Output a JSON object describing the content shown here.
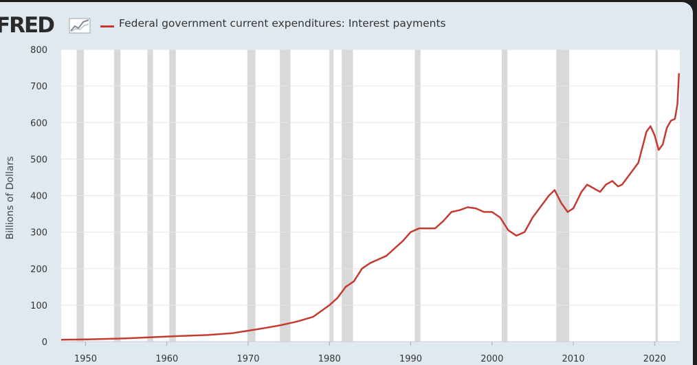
{
  "header": {
    "logo_text": "FRED",
    "legend_label": "Federal government current expenditures: Interest payments"
  },
  "colors": {
    "series": "#c43a30",
    "recession": "#d9d9d9",
    "plot_bg": "#ffffff",
    "card_bg": "#e1e9f0"
  },
  "chart_data": {
    "type": "line",
    "title": "",
    "xlabel": "",
    "ylabel": "Billions of Dollars",
    "xlim": [
      1947,
      2023.1
    ],
    "ylim": [
      0,
      800
    ],
    "y_ticks": [
      0,
      100,
      200,
      300,
      400,
      500,
      600,
      700,
      800
    ],
    "x_ticks": [
      1950,
      1960,
      1970,
      1980,
      1990,
      2000,
      2010,
      2020
    ],
    "grid": true,
    "legend_position": "top",
    "recessions": [
      [
        1948.9,
        1949.8
      ],
      [
        1953.5,
        1954.3
      ],
      [
        1957.6,
        1958.3
      ],
      [
        1960.3,
        1961.1
      ],
      [
        1969.9,
        1970.9
      ],
      [
        1973.9,
        1975.2
      ],
      [
        1980.0,
        1980.5
      ],
      [
        1981.5,
        1982.9
      ],
      [
        1990.5,
        1991.2
      ],
      [
        2001.2,
        2001.9
      ],
      [
        2007.9,
        2009.5
      ],
      [
        2020.1,
        2020.4
      ]
    ],
    "series": [
      {
        "x": [
          1947,
          1950,
          1955,
          1960,
          1965,
          1968,
          1970,
          1972,
          1974,
          1976,
          1978,
          1980,
          1981,
          1982,
          1983,
          1984,
          1985,
          1986,
          1987,
          1988,
          1989,
          1990,
          1991,
          1992,
          1993,
          1994,
          1995,
          1996,
          1997,
          1998,
          1999,
          2000,
          2001,
          2002,
          2003,
          2004,
          2005,
          2006,
          2007,
          2007.7,
          2008.5,
          2009.3,
          2010,
          2011,
          2011.7,
          2012.5,
          2013.3,
          2014,
          2014.8,
          2015.5,
          2016,
          2017,
          2018,
          2019,
          2019.5,
          2020,
          2020.5,
          2021,
          2021.5,
          2022,
          2022.5,
          2022.8,
          2023
        ],
        "y": [
          5,
          6,
          9,
          14,
          18,
          23,
          30,
          37,
          45,
          55,
          68,
          100,
          120,
          150,
          165,
          200,
          215,
          225,
          235,
          255,
          275,
          300,
          310,
          310,
          310,
          330,
          355,
          360,
          368,
          365,
          355,
          355,
          340,
          305,
          290,
          300,
          340,
          370,
          400,
          415,
          380,
          355,
          365,
          410,
          430,
          420,
          410,
          430,
          440,
          425,
          430,
          460,
          490,
          575,
          590,
          565,
          525,
          540,
          585,
          605,
          610,
          650,
          735
        ]
      }
    ]
  }
}
